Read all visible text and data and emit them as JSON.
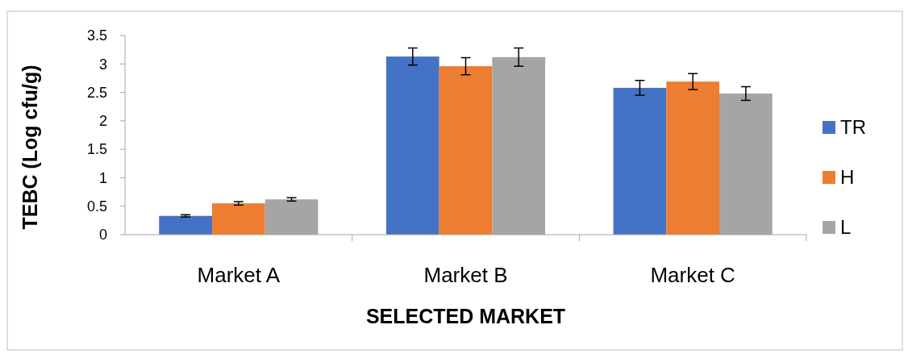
{
  "chart_data": {
    "type": "bar",
    "xlabel": "SELECTED MARKET",
    "ylabel": "TEBC (Log cfu/g)",
    "categories": [
      "Market A",
      "Market B",
      "Market C"
    ],
    "series": [
      {
        "name": "TR",
        "color": "#4472c4",
        "values": [
          0.33,
          3.13,
          2.58
        ],
        "errors": [
          0.02,
          0.15,
          0.13
        ]
      },
      {
        "name": "H",
        "color": "#ed7d31",
        "values": [
          0.55,
          2.96,
          2.69
        ],
        "errors": [
          0.03,
          0.15,
          0.14
        ]
      },
      {
        "name": "L",
        "color": "#a5a5a5",
        "values": [
          0.62,
          3.12,
          2.48
        ],
        "errors": [
          0.03,
          0.16,
          0.12
        ]
      }
    ],
    "ylim": [
      0,
      3.5
    ],
    "yticks": [
      0,
      0.5,
      1,
      1.5,
      2,
      2.5,
      3,
      3.5
    ],
    "legend": "right",
    "grid": false
  }
}
